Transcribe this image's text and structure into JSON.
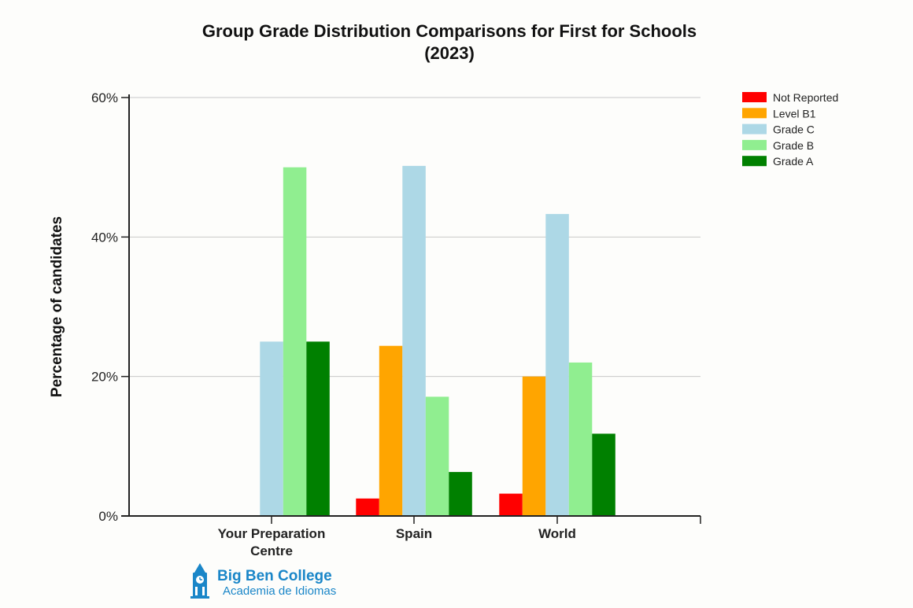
{
  "chart_data": {
    "type": "bar",
    "title_lines": [
      "Group Grade Distribution Comparisons for First for Schools",
      "(2023)"
    ],
    "ylabel": "Percentage of candidates",
    "xlabel": "",
    "ylim": [
      0,
      60
    ],
    "yticks": [
      0,
      20,
      40,
      60
    ],
    "ytick_labels": [
      "0%",
      "20%",
      "40%",
      "60%"
    ],
    "grid": true,
    "legend_position": "top-right",
    "categories": [
      [
        "Your Preparation",
        "Centre"
      ],
      [
        "Spain"
      ],
      [
        "World"
      ]
    ],
    "series": [
      {
        "name": "Not Reported",
        "color": "#ff0000",
        "values": [
          0,
          2.5,
          3.2
        ]
      },
      {
        "name": "Level B1",
        "color": "#ffa500",
        "values": [
          0,
          24.4,
          20.0
        ]
      },
      {
        "name": "Grade C",
        "color": "#add8e6",
        "values": [
          25.0,
          50.2,
          43.3
        ]
      },
      {
        "name": "Grade B",
        "color": "#90ee90",
        "values": [
          50.0,
          17.1,
          22.0
        ]
      },
      {
        "name": "Grade A",
        "color": "#008000",
        "values": [
          25.0,
          6.3,
          11.8
        ]
      }
    ]
  },
  "logo": {
    "name": "Big Ben College",
    "subtitle": "Academia de Idiomas",
    "icon": "clock-tower-icon",
    "color": "#1a86c8"
  }
}
